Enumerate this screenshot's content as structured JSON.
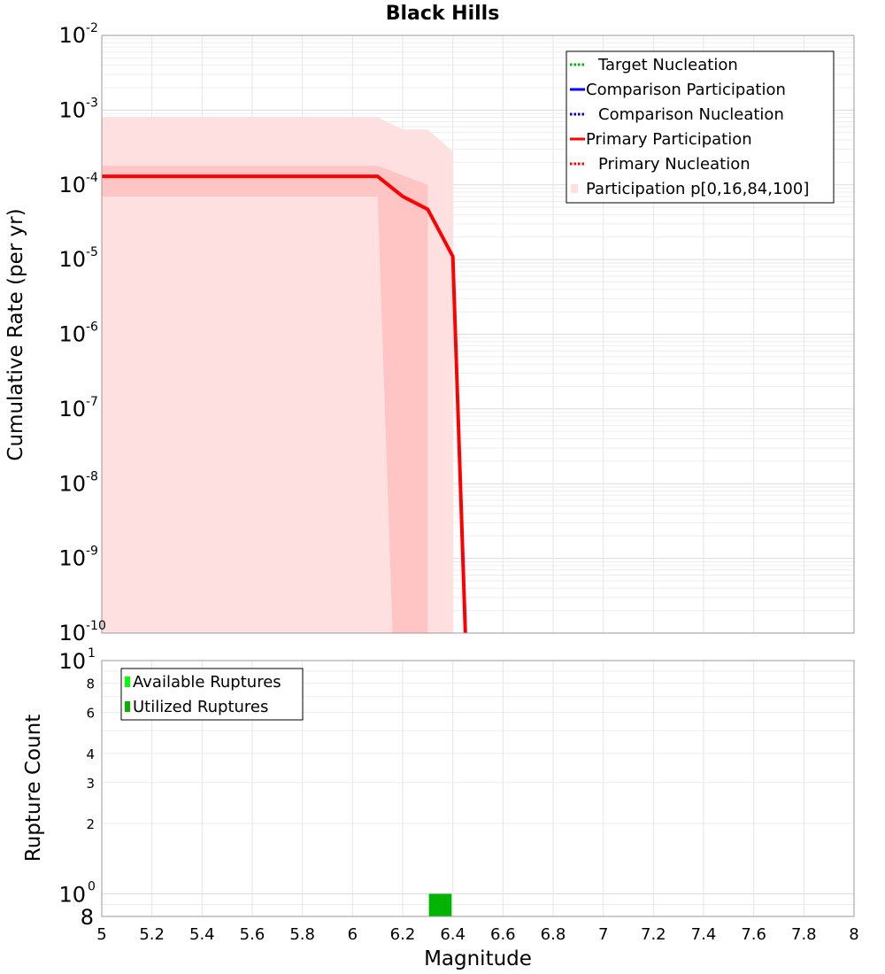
{
  "chart_data": [
    {
      "type": "line",
      "title": "Black Hills",
      "xlabel": "",
      "ylabel": "Cumulative Rate (per yr)",
      "yscale": "log",
      "xlim": [
        5,
        8
      ],
      "ylim": [
        1e-10,
        0.01
      ],
      "grid": true,
      "legend_position": "top-right",
      "y_ticks": [
        {
          "base": "10",
          "exp": "-10",
          "value": 1e-10
        },
        {
          "base": "10",
          "exp": "-9",
          "value": 1e-09
        },
        {
          "base": "10",
          "exp": "-8",
          "value": 1e-08
        },
        {
          "base": "10",
          "exp": "-7",
          "value": 1e-07
        },
        {
          "base": "10",
          "exp": "-6",
          "value": 1e-06
        },
        {
          "base": "10",
          "exp": "-5",
          "value": 1e-05
        },
        {
          "base": "10",
          "exp": "-4",
          "value": 0.0001
        },
        {
          "base": "10",
          "exp": "-3",
          "value": 0.001
        },
        {
          "base": "10",
          "exp": "-2",
          "value": 0.01
        }
      ],
      "legend": [
        {
          "label": "Target Nucleation",
          "color": "#00b400",
          "style": "dotted",
          "kind": "line"
        },
        {
          "label": "Comparison Participation",
          "color": "#0000ff",
          "style": "solid",
          "kind": "line"
        },
        {
          "label": "Comparison Nucleation",
          "color": "#0000c8",
          "style": "dotted",
          "kind": "line"
        },
        {
          "label": "Primary Participation",
          "color": "#ff0000",
          "style": "solid",
          "kind": "line"
        },
        {
          "label": "Primary Nucleation",
          "color": "#ff0000",
          "style": "dotted",
          "kind": "line"
        },
        {
          "label": "Participation p[0,16,84,100]",
          "color": "#ffdede",
          "style": "fill",
          "kind": "band"
        }
      ],
      "series": [
        {
          "name": "Primary Participation",
          "color": "#ff0000",
          "x": [
            5.0,
            6.1,
            6.2,
            6.3,
            6.4,
            6.45
          ],
          "y": [
            0.00013,
            0.00013,
            7e-05,
            4.7e-05,
            1.1e-05,
            1e-10
          ]
        }
      ],
      "bands": [
        {
          "name": "p0-p100",
          "color": "#ffe0e0",
          "x_upper": [
            5.0,
            6.1,
            6.2,
            6.3,
            6.4,
            6.4
          ],
          "upper": [
            0.0008,
            0.0008,
            0.00055,
            0.00055,
            0.00028,
            1e-10
          ]
        },
        {
          "name": "p16-p84",
          "color": "#ffc4c4",
          "x_upper": [
            5.0,
            6.1,
            6.3,
            6.3
          ],
          "upper": [
            0.00018,
            0.00018,
            0.0001,
            1e-10
          ],
          "x_lower": [
            5.0,
            6.1,
            6.16
          ],
          "lower": [
            7e-05,
            7e-05,
            1e-10
          ]
        }
      ]
    },
    {
      "type": "bar",
      "title": "",
      "xlabel": "Magnitude",
      "ylabel": "Rupture Count",
      "yscale": "log",
      "xlim": [
        5,
        8
      ],
      "ylim": [
        0.8,
        10
      ],
      "grid": true,
      "legend_position": "top-left",
      "x_tick_labels": [
        "5",
        "5.2",
        "5.4",
        "5.6",
        "5.8",
        "6",
        "6.2",
        "6.4",
        "6.6",
        "6.8",
        "7",
        "7.2",
        "7.4",
        "7.6",
        "7.8",
        "8"
      ],
      "y_ticks": [
        {
          "base": "10",
          "exp": "0",
          "value": 1
        },
        {
          "base": "10",
          "exp": "1",
          "value": 10
        }
      ],
      "y_minor_ticks": [
        {
          "label": "8",
          "value": 0.8
        },
        {
          "label": "2",
          "value": 2
        },
        {
          "label": "3",
          "value": 3
        },
        {
          "label": "4",
          "value": 4
        },
        {
          "label": "6",
          "value": 6
        },
        {
          "label": "8",
          "value": 8
        }
      ],
      "legend": [
        {
          "label": "Available Ruptures",
          "color": "#00ff00"
        },
        {
          "label": "Utilized Ruptures",
          "color": "#00b400"
        }
      ],
      "series": [
        {
          "name": "Available Ruptures",
          "color": "#00ff00",
          "x": [
            6.35
          ],
          "values": [
            1
          ]
        },
        {
          "name": "Utilized Ruptures",
          "color": "#00b400",
          "x": [
            6.35
          ],
          "values": [
            1
          ]
        }
      ],
      "bar_width": 0.09
    }
  ]
}
